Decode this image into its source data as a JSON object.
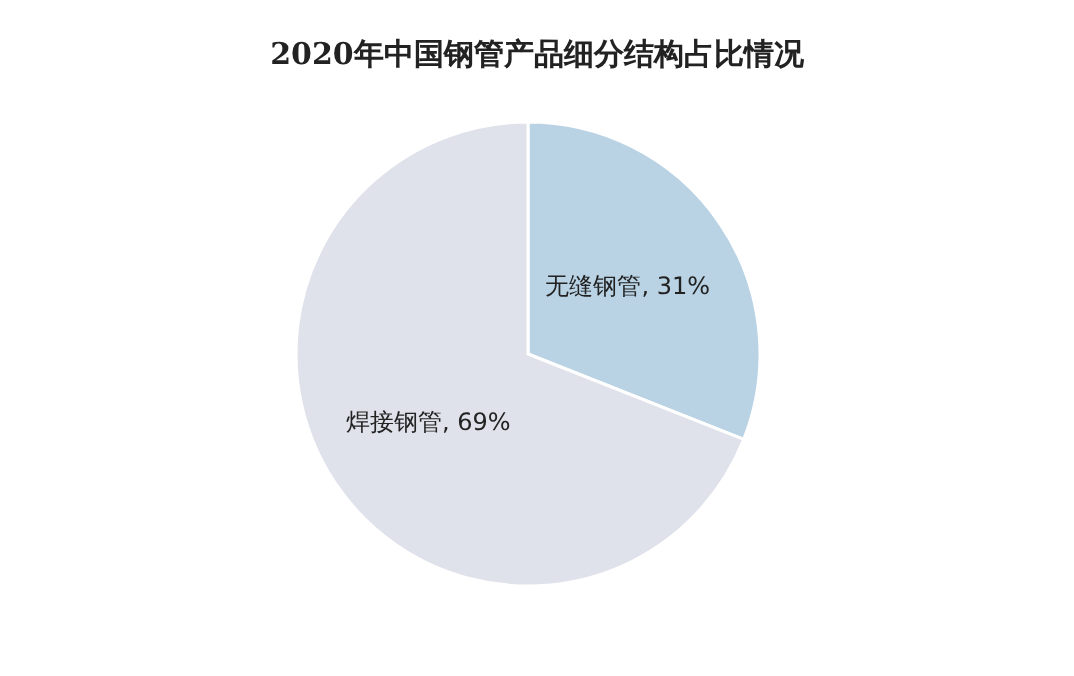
{
  "chart_data": {
    "type": "pie",
    "title": "2020年中国钢管产品细分结构占比情况",
    "categories": [
      "无缝钢管",
      "焊接钢管"
    ],
    "values": [
      31,
      69
    ],
    "colors": [
      "#b9d3e5",
      "#dfe2ea"
    ],
    "value_labels": [
      "31%",
      "69%"
    ]
  }
}
